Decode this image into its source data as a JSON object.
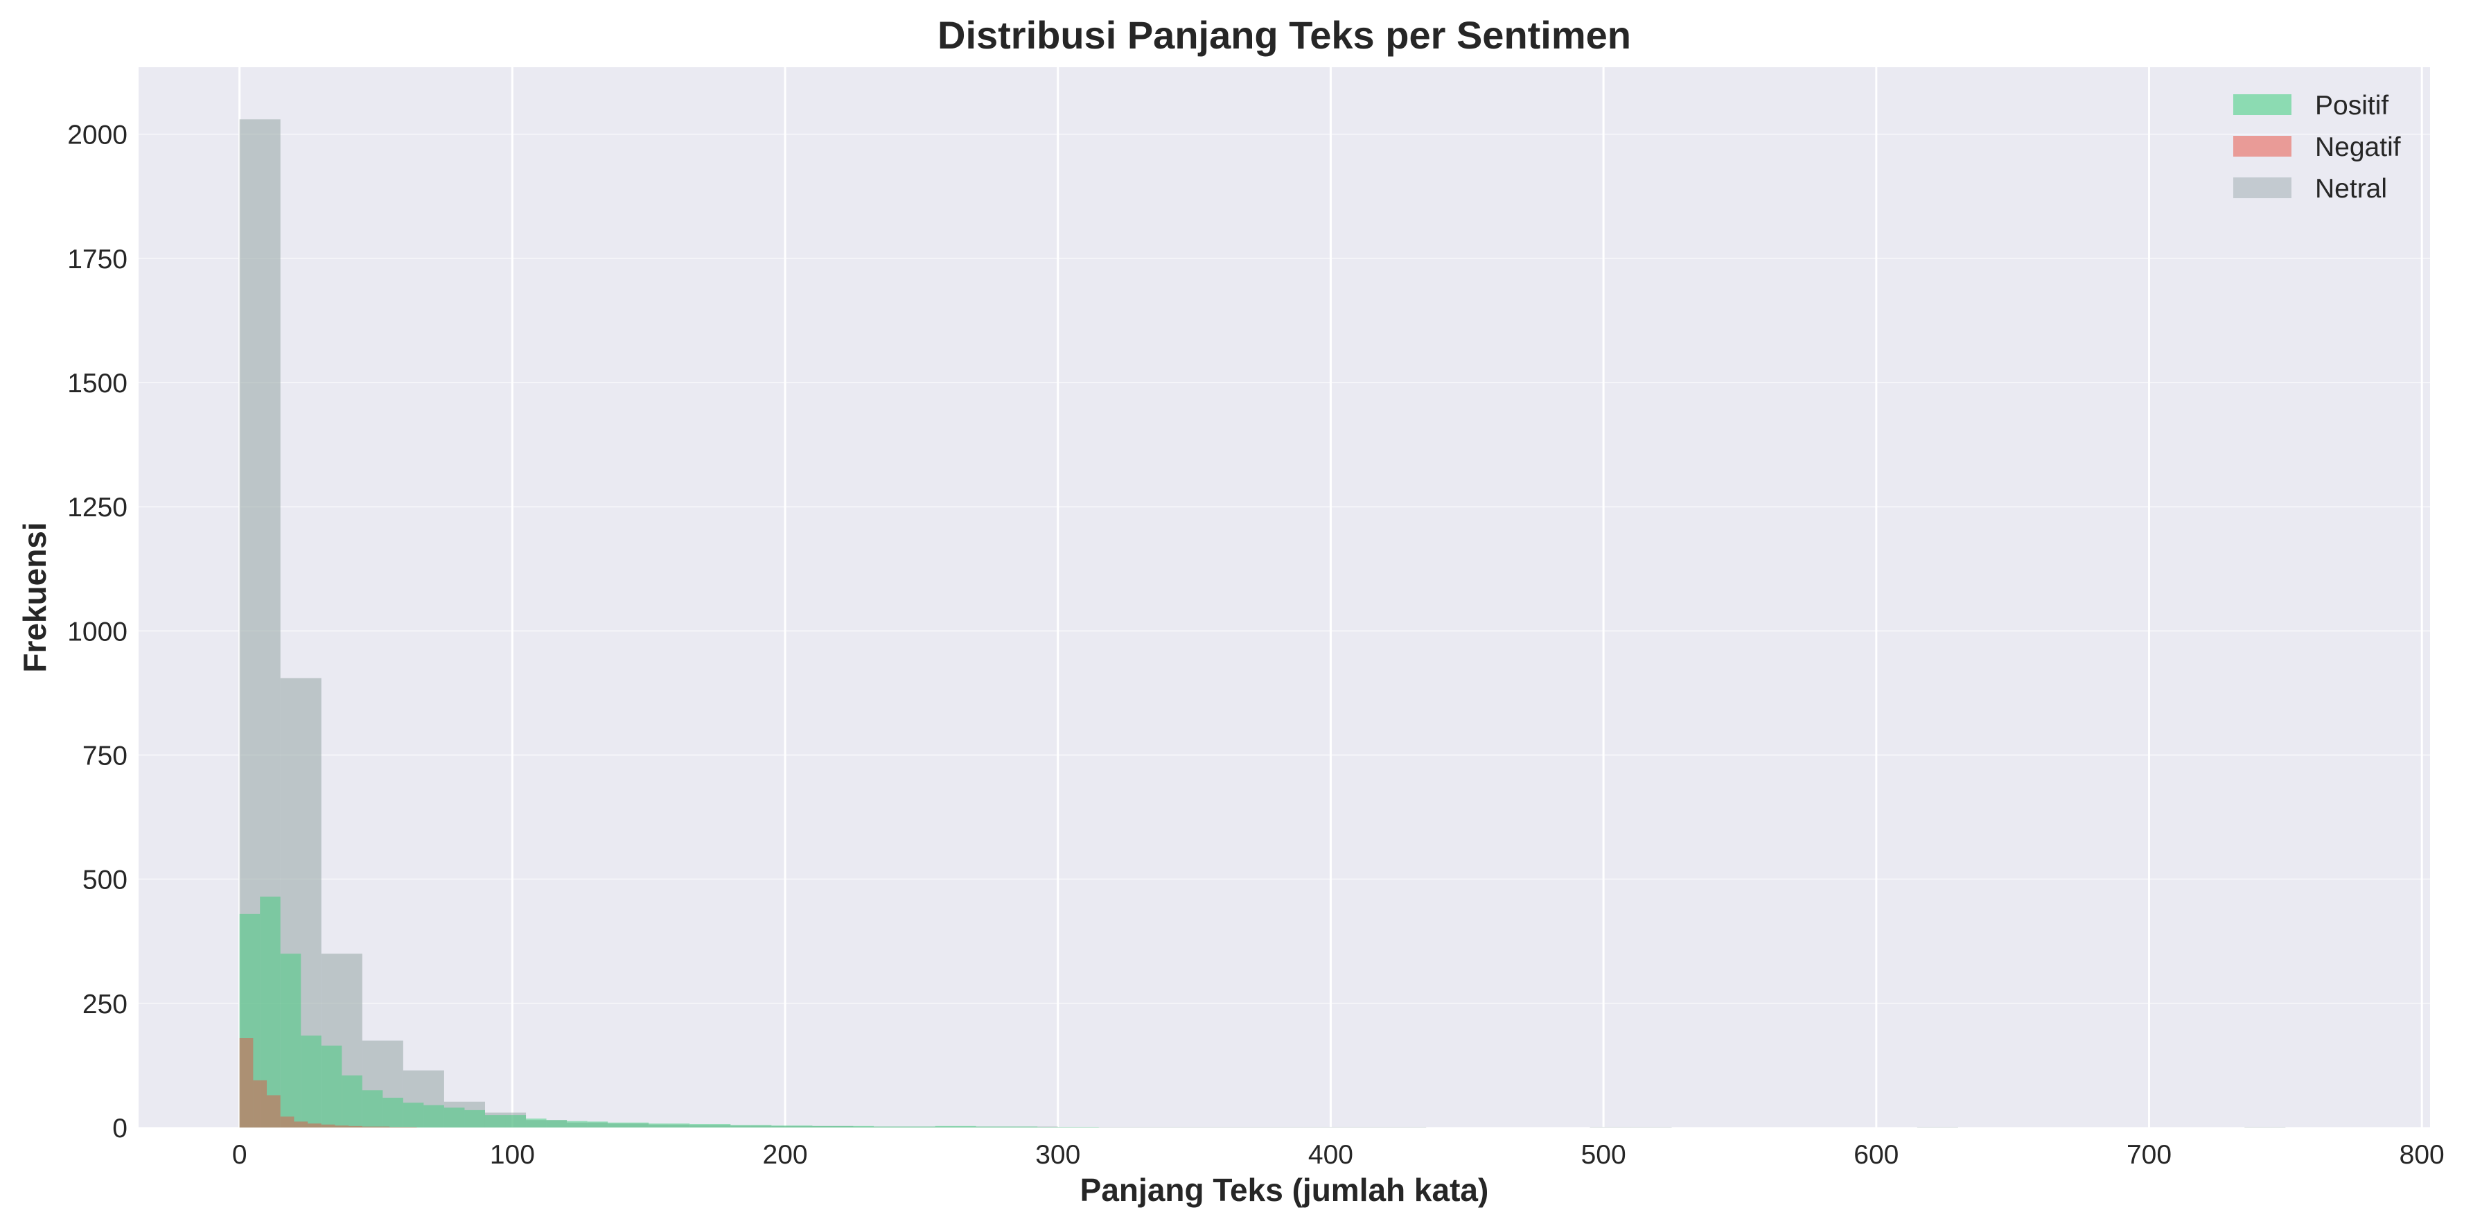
{
  "chart_data": {
    "type": "histogram",
    "title": "Distribusi Panjang Teks per Sentimen",
    "xlabel": "Panjang Teks (jumlah kata)",
    "ylabel": "Frekuensi",
    "xlim": [
      -37,
      803
    ],
    "ylim": [
      0,
      2135
    ],
    "x_ticks": [
      "0",
      "100",
      "200",
      "300",
      "400",
      "500",
      "600",
      "700",
      "800"
    ],
    "y_ticks": [
      "0",
      "250",
      "500",
      "750",
      "1000",
      "1250",
      "1500",
      "1750",
      "2000"
    ],
    "grid": true,
    "legend_position": "top-right",
    "series": [
      {
        "name": "Netral",
        "color": "#95a5a6",
        "opacity": 0.55,
        "bin_width": 15,
        "bins": [
          [
            0,
            2030
          ],
          [
            15,
            905
          ],
          [
            30,
            350
          ],
          [
            45,
            175
          ],
          [
            60,
            115
          ],
          [
            75,
            52
          ],
          [
            90,
            30
          ],
          [
            105,
            15
          ],
          [
            120,
            10
          ],
          [
            135,
            8
          ],
          [
            150,
            6
          ],
          [
            165,
            5
          ],
          [
            180,
            4
          ],
          [
            195,
            3
          ],
          [
            210,
            3
          ],
          [
            225,
            2
          ],
          [
            240,
            2
          ],
          [
            255,
            2
          ],
          [
            270,
            2
          ],
          [
            285,
            2
          ],
          [
            300,
            1
          ],
          [
            315,
            1
          ],
          [
            330,
            1
          ],
          [
            345,
            1
          ],
          [
            360,
            1
          ],
          [
            375,
            1
          ],
          [
            390,
            1
          ],
          [
            405,
            1
          ],
          [
            420,
            1
          ],
          [
            495,
            1
          ],
          [
            510,
            1
          ],
          [
            615,
            1
          ],
          [
            735,
            1
          ]
        ]
      },
      {
        "name": "Positif",
        "color": "#2ecc71",
        "opacity": 0.45,
        "bin_width": 7.5,
        "bins": [
          [
            0,
            430
          ],
          [
            7.5,
            465
          ],
          [
            15,
            350
          ],
          [
            22.5,
            185
          ],
          [
            30,
            165
          ],
          [
            37.5,
            105
          ],
          [
            45,
            75
          ],
          [
            52.5,
            60
          ],
          [
            60,
            50
          ],
          [
            67.5,
            45
          ],
          [
            75,
            40
          ],
          [
            82.5,
            35
          ],
          [
            90,
            25
          ],
          [
            97.5,
            25
          ],
          [
            105,
            18
          ],
          [
            112.5,
            15
          ],
          [
            120,
            13
          ],
          [
            127.5,
            12
          ],
          [
            135,
            10
          ],
          [
            142.5,
            10
          ],
          [
            150,
            8
          ],
          [
            157.5,
            8
          ],
          [
            165,
            7
          ],
          [
            172.5,
            7
          ],
          [
            180,
            5
          ],
          [
            187.5,
            5
          ],
          [
            195,
            4
          ],
          [
            202.5,
            4
          ],
          [
            210,
            3
          ],
          [
            217.5,
            3
          ],
          [
            225,
            3
          ],
          [
            232.5,
            2
          ],
          [
            240,
            2
          ],
          [
            247.5,
            2
          ],
          [
            255,
            3
          ],
          [
            262.5,
            3
          ],
          [
            270,
            2
          ],
          [
            277.5,
            2
          ],
          [
            285,
            2
          ],
          [
            292.5,
            1
          ],
          [
            300,
            1
          ],
          [
            307.5,
            1
          ]
        ]
      },
      {
        "name": "Negatif",
        "color": "#e74c3c",
        "opacity": 0.45,
        "bin_width": 5,
        "bins": [
          [
            0,
            180
          ],
          [
            5,
            95
          ],
          [
            10,
            65
          ],
          [
            15,
            22
          ],
          [
            20,
            12
          ],
          [
            25,
            8
          ],
          [
            30,
            6
          ],
          [
            35,
            4
          ],
          [
            40,
            3
          ],
          [
            45,
            2
          ],
          [
            50,
            2
          ],
          [
            55,
            1
          ],
          [
            60,
            1
          ]
        ]
      }
    ],
    "legend": [
      "Positif",
      "Negatif",
      "Netral"
    ],
    "legend_colors": {
      "Positif": "#2ecc71",
      "Negatif": "#e74c3c",
      "Netral": "#95a5a6"
    }
  }
}
